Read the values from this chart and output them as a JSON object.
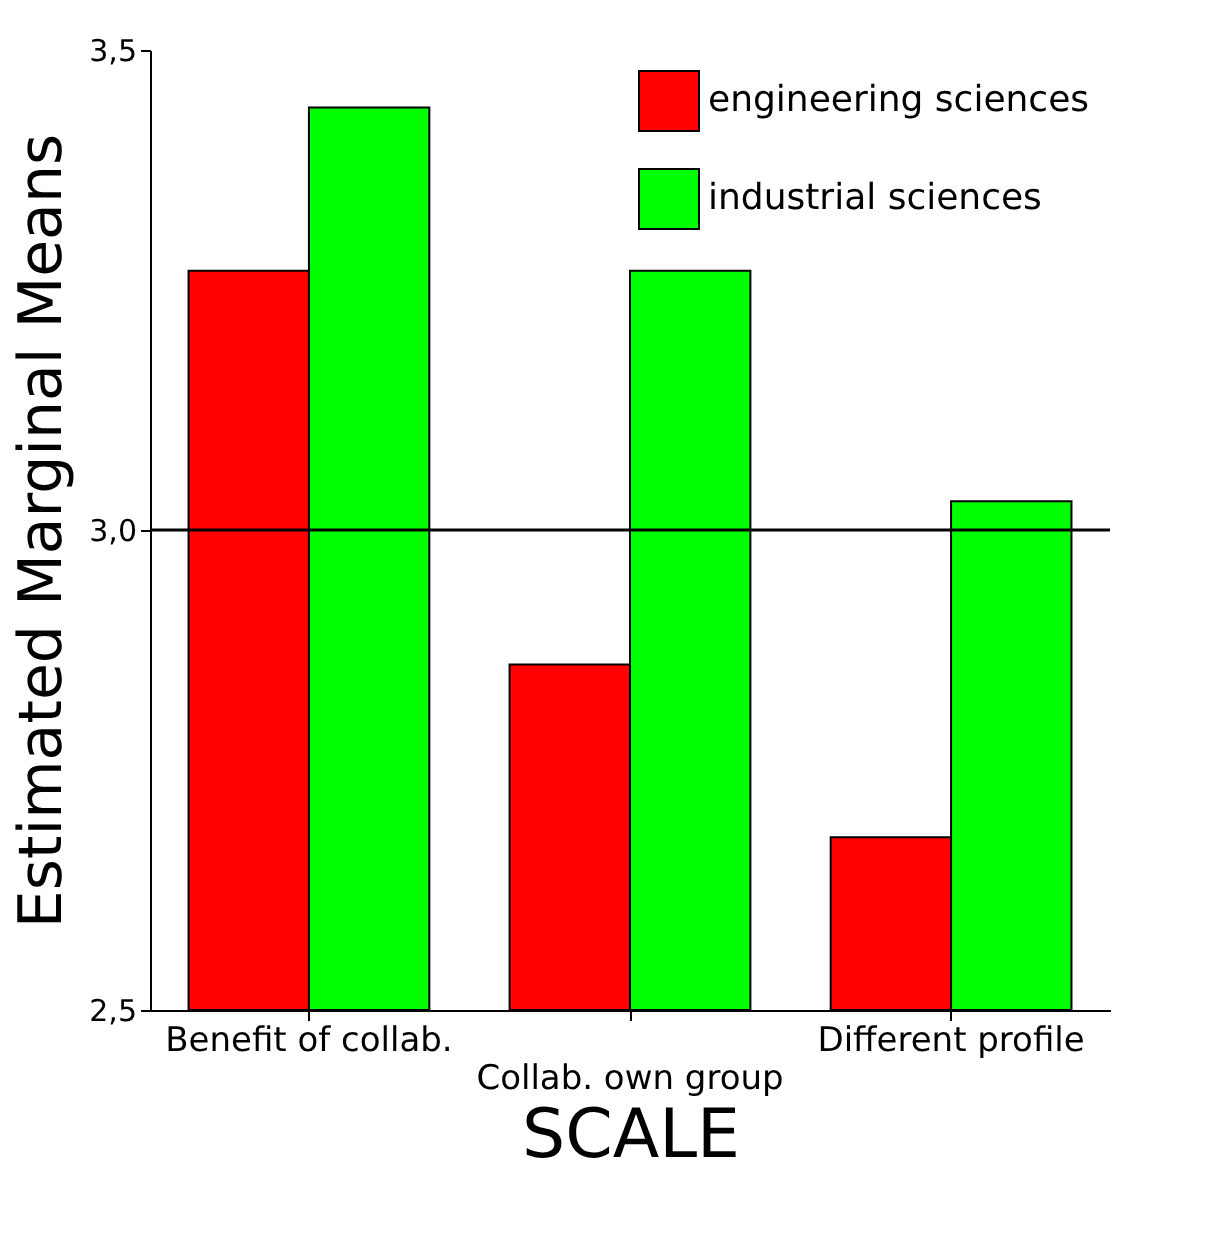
{
  "chart_data": {
    "type": "bar",
    "xlabel": "SCALE",
    "ylabel": "Estimated Marginal Means",
    "categories": [
      "Benefit of collab.",
      "Collab. own group",
      "Different profile"
    ],
    "series": [
      {
        "name": "engineering sciences",
        "color": "#ff0000",
        "values": [
          3.27,
          2.86,
          2.68
        ]
      },
      {
        "name": "industrial sciences",
        "color": "#00ff00",
        "values": [
          3.44,
          3.27,
          3.03
        ]
      }
    ],
    "ylim": [
      2.5,
      3.5
    ],
    "yticks": [
      {
        "value": 2.5,
        "label": "2,5"
      },
      {
        "value": 3.0,
        "label": "3,0"
      },
      {
        "value": 3.5,
        "label": "3,5"
      }
    ],
    "ref_lines": [
      {
        "axis": "y",
        "value": 3.0,
        "color": "#000000"
      }
    ],
    "grid": false,
    "legend": "top right"
  }
}
